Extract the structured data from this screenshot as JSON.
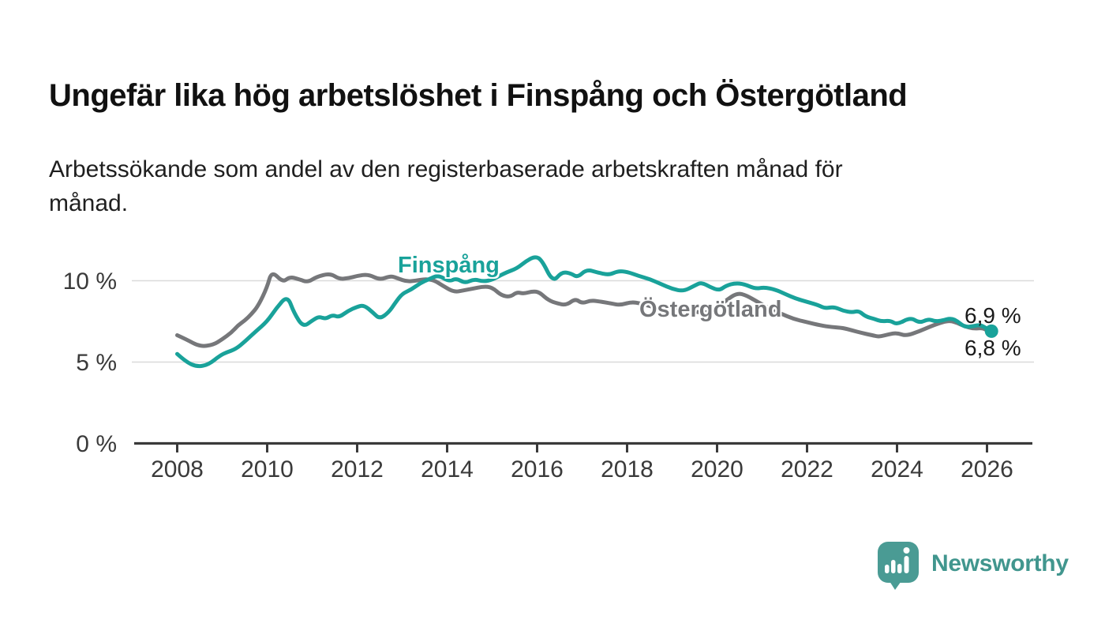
{
  "header": {
    "title": "Ungefär lika hög arbetslöshet i Finspång och Östergötland",
    "subtitle": "Arbetssökande som andel av den registerbaserade arbetskraften månad för månad."
  },
  "chart_data": {
    "type": "line",
    "title": "Ungefär lika hög arbetslöshet i Finspång och Östergötland",
    "subtitle": "Arbetssökande som andel av den registerbaserade arbetskraften månad för månad.",
    "xlabel": "",
    "ylabel": "",
    "grid": "horizontal",
    "legend_position": "inline-labels",
    "xlim": [
      2007.05,
      2026.95
    ],
    "ylim": [
      0,
      12.2
    ],
    "x_tick_values": [
      2008,
      2010,
      2012,
      2014,
      2016,
      2018,
      2020,
      2022,
      2024,
      2026
    ],
    "x_tick_labels": [
      "2008",
      "2010",
      "2012",
      "2014",
      "2016",
      "2018",
      "2020",
      "2022",
      "2024",
      "2026"
    ],
    "y_tick_values": [
      0,
      5,
      10
    ],
    "y_tick_labels": [
      "0 %",
      "5 %",
      "10 %"
    ],
    "colors": {
      "axis": "#3a3a3a",
      "gridline": "#dadada"
    },
    "series": [
      {
        "name": "Finspång",
        "color": "#19a29a",
        "end_label": "6,9 %",
        "end_value": 6.9,
        "end_marker": true,
        "x": [
          2008.0,
          2008.2,
          2008.45,
          2008.7,
          2008.95,
          2009.1,
          2009.3,
          2009.5,
          2009.75,
          2010.0,
          2010.2,
          2010.45,
          2010.6,
          2010.8,
          2011.0,
          2011.15,
          2011.3,
          2011.45,
          2011.6,
          2011.8,
          2012.0,
          2012.15,
          2012.35,
          2012.5,
          2012.7,
          2012.85,
          2013.0,
          2013.2,
          2013.4,
          2013.6,
          2013.8,
          2014.05,
          2014.2,
          2014.4,
          2014.6,
          2014.8,
          2015.0,
          2015.3,
          2015.55,
          2015.75,
          2015.95,
          2016.1,
          2016.35,
          2016.55,
          2016.75,
          2016.9,
          2017.1,
          2017.35,
          2017.6,
          2017.8,
          2018.0,
          2018.25,
          2018.5,
          2018.75,
          2019.0,
          2019.25,
          2019.5,
          2019.65,
          2019.85,
          2020.05,
          2020.2,
          2020.4,
          2020.6,
          2020.85,
          2021.05,
          2021.3,
          2021.5,
          2021.75,
          2022.0,
          2022.25,
          2022.4,
          2022.6,
          2022.8,
          2023.0,
          2023.15,
          2023.3,
          2023.5,
          2023.65,
          2023.85,
          2024.0,
          2024.3,
          2024.5,
          2024.7,
          2024.85,
          2025.0,
          2025.2,
          2025.35,
          2025.5,
          2025.7,
          2025.85,
          2026.0,
          2026.1
        ],
        "y": [
          5.5,
          5.0,
          4.7,
          4.85,
          5.4,
          5.6,
          5.8,
          6.25,
          6.9,
          7.5,
          8.3,
          9.1,
          8.0,
          7.15,
          7.55,
          7.8,
          7.65,
          7.9,
          7.75,
          8.15,
          8.4,
          8.5,
          8.05,
          7.65,
          8.05,
          8.65,
          9.2,
          9.45,
          9.85,
          10.1,
          10.35,
          9.95,
          10.15,
          9.85,
          10.1,
          9.95,
          10.05,
          10.5,
          10.75,
          11.2,
          11.5,
          11.3,
          9.9,
          10.55,
          10.45,
          10.2,
          10.7,
          10.5,
          10.35,
          10.6,
          10.55,
          10.3,
          10.1,
          9.8,
          9.5,
          9.35,
          9.7,
          9.9,
          9.6,
          9.4,
          9.7,
          9.85,
          9.8,
          9.5,
          9.6,
          9.45,
          9.2,
          8.9,
          8.7,
          8.5,
          8.3,
          8.4,
          8.15,
          8.05,
          8.15,
          7.8,
          7.65,
          7.5,
          7.55,
          7.3,
          7.75,
          7.4,
          7.65,
          7.5,
          7.55,
          7.7,
          7.5,
          7.15,
          7.2,
          7.3,
          7.05,
          6.9
        ]
      },
      {
        "name": "Östergötland",
        "color": "#76777a",
        "end_label": "6,8 %",
        "end_value": 6.8,
        "end_marker": false,
        "x": [
          2008.0,
          2008.2,
          2008.5,
          2008.8,
          2009.0,
          2009.2,
          2009.35,
          2009.5,
          2009.65,
          2009.8,
          2010.0,
          2010.1,
          2010.35,
          2010.5,
          2010.7,
          2010.9,
          2011.1,
          2011.4,
          2011.6,
          2011.8,
          2012.0,
          2012.25,
          2012.5,
          2012.75,
          2012.9,
          2013.1,
          2013.3,
          2013.5,
          2013.7,
          2013.9,
          2014.15,
          2014.35,
          2014.55,
          2014.8,
          2015.0,
          2015.2,
          2015.4,
          2015.55,
          2015.7,
          2015.9,
          2016.05,
          2016.25,
          2016.45,
          2016.65,
          2016.85,
          2017.0,
          2017.2,
          2017.45,
          2017.65,
          2017.85,
          2018.1,
          2018.3,
          2018.55,
          2018.8,
          2019.0,
          2019.25,
          2019.5,
          2019.75,
          2020.0,
          2020.2,
          2020.45,
          2020.65,
          2020.9,
          2021.1,
          2021.4,
          2021.7,
          2022.0,
          2022.3,
          2022.55,
          2022.8,
          2023.0,
          2023.2,
          2023.45,
          2023.6,
          2023.8,
          2024.0,
          2024.2,
          2024.5,
          2024.75,
          2024.95,
          2025.15,
          2025.3,
          2025.5,
          2025.7,
          2025.9,
          2026.0,
          2026.1
        ],
        "y": [
          6.65,
          6.4,
          5.95,
          6.05,
          6.4,
          6.8,
          7.25,
          7.55,
          7.95,
          8.45,
          9.6,
          10.6,
          9.9,
          10.25,
          10.1,
          9.9,
          10.25,
          10.45,
          10.1,
          10.15,
          10.3,
          10.4,
          10.05,
          10.3,
          10.15,
          9.95,
          10.0,
          10.1,
          10.05,
          9.7,
          9.3,
          9.4,
          9.5,
          9.65,
          9.6,
          9.1,
          9.0,
          9.3,
          9.2,
          9.35,
          9.3,
          8.8,
          8.6,
          8.5,
          8.9,
          8.6,
          8.8,
          8.7,
          8.6,
          8.5,
          8.7,
          8.6,
          8.4,
          8.3,
          8.45,
          8.25,
          8.1,
          8.0,
          8.3,
          8.8,
          9.25,
          9.1,
          8.7,
          8.4,
          8.0,
          7.65,
          7.45,
          7.25,
          7.15,
          7.1,
          6.95,
          6.8,
          6.65,
          6.55,
          6.7,
          6.8,
          6.6,
          6.9,
          7.2,
          7.4,
          7.55,
          7.45,
          7.2,
          7.05,
          7.1,
          6.95,
          6.8
        ]
      }
    ]
  },
  "branding": {
    "logo_text": "Newsworthy",
    "logo_color": "#4a9b94",
    "logo_icon": "bar-chart-speech-bubble-icon"
  }
}
